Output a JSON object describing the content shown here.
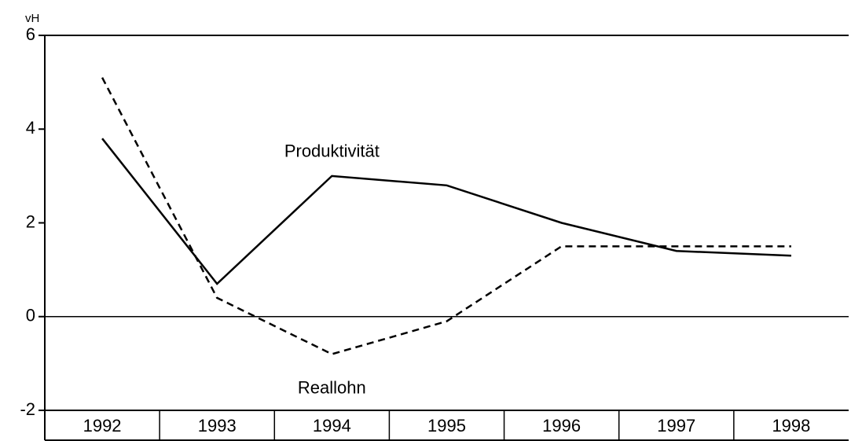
{
  "chart_data": {
    "type": "line",
    "y_axis_label": "vH",
    "categories": [
      "1992",
      "1993",
      "1994",
      "1995",
      "1996",
      "1997",
      "1998"
    ],
    "series": [
      {
        "name": "Produktivität",
        "color": "#000000",
        "dash": false,
        "values": [
          3.8,
          0.7,
          3.0,
          2.8,
          2.0,
          1.4,
          1.3
        ]
      },
      {
        "name": "Reallohn",
        "color": "#000000",
        "dash": true,
        "values": [
          5.1,
          0.4,
          -0.8,
          -0.1,
          1.5,
          1.5,
          1.5
        ]
      }
    ],
    "ylim": [
      -2,
      6
    ],
    "yticks": [
      -2,
      0,
      2,
      4,
      6
    ]
  }
}
